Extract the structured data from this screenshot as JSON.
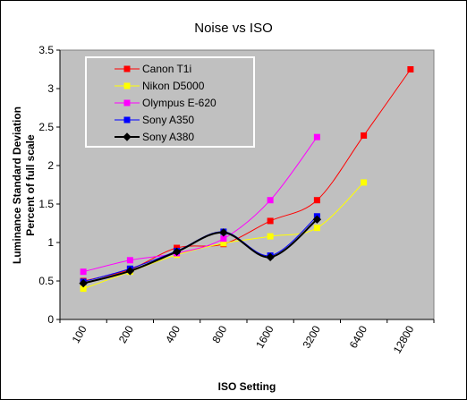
{
  "chart_data": {
    "type": "line",
    "title": "Noise vs ISO",
    "xlabel": "ISO Setting",
    "ylabel_line1": "Luminance Standard Deviation",
    "ylabel_line2": "Percent of full scale",
    "categories": [
      "100",
      "200",
      "400",
      "800",
      "1600",
      "3200",
      "6400",
      "12800"
    ],
    "ylim": [
      0,
      3.5
    ],
    "yticks": [
      "0",
      "0.5",
      "1",
      "1.5",
      "2",
      "2.5",
      "3",
      "3.5"
    ],
    "grid": false,
    "legend_position": "top-left",
    "plot_background": "#c0c0c0",
    "series": [
      {
        "name": "Canon T1i",
        "color": "#ff0000",
        "line_color": "#ff0000",
        "marker": "square",
        "values": [
          0.5,
          0.65,
          0.93,
          0.98,
          1.28,
          1.55,
          2.39,
          3.25
        ]
      },
      {
        "name": "Nikon D5000",
        "color": "#ffff00",
        "line_color": "#ffff00",
        "marker": "square",
        "values": [
          0.4,
          0.62,
          0.84,
          0.99,
          1.08,
          1.19,
          1.78,
          null
        ]
      },
      {
        "name": "Olympus E-620",
        "color": "#ff00ff",
        "line_color": "#ff00ff",
        "marker": "square",
        "values": [
          0.62,
          0.77,
          0.86,
          1.05,
          1.55,
          2.37,
          null,
          null
        ]
      },
      {
        "name": "Sony A350",
        "color": "#0000ff",
        "line_color": "#0000ff",
        "marker": "square",
        "values": [
          0.49,
          0.66,
          0.89,
          1.14,
          0.83,
          1.34,
          null,
          null
        ]
      },
      {
        "name": "Sony A380",
        "color": "#000000",
        "line_color": "#000000",
        "marker": "diamond",
        "values": [
          0.47,
          0.63,
          0.88,
          1.13,
          0.81,
          1.3,
          null,
          null
        ]
      }
    ]
  }
}
